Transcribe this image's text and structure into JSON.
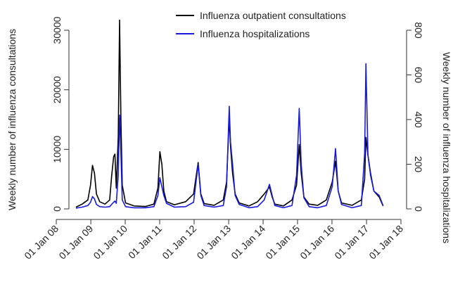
{
  "chart_data": {
    "type": "line",
    "y_label": "Weekly number of influenza consultations",
    "y2_label": "Weekly number of influenza hospitalizations",
    "legend": "top-right",
    "x": [
      "2008-07-28",
      "2008-10-01",
      "2008-12-01",
      "2008-12-29",
      "2009-01-19",
      "2009-02-09",
      "2009-03-02",
      "2009-04-06",
      "2009-06-01",
      "2009-07-20",
      "2009-08-10",
      "2009-08-31",
      "2009-09-14",
      "2009-09-28",
      "2009-10-19",
      "2009-11-02",
      "2009-11-16",
      "2009-11-30",
      "2010-01-04",
      "2010-04-05",
      "2010-08-02",
      "2010-11-01",
      "2010-12-13",
      "2011-01-03",
      "2011-01-24",
      "2011-02-14",
      "2011-03-14",
      "2011-06-06",
      "2011-10-03",
      "2011-12-26",
      "2012-02-13",
      "2012-03-12",
      "2012-04-16",
      "2012-07-30",
      "2012-11-05",
      "2012-12-10",
      "2013-01-07",
      "2013-01-21",
      "2013-02-11",
      "2013-03-11",
      "2013-04-22",
      "2013-08-05",
      "2013-11-04",
      "2014-01-13",
      "2014-03-10",
      "2014-04-07",
      "2014-05-05",
      "2014-08-04",
      "2014-11-03",
      "2014-12-22",
      "2015-01-19",
      "2015-02-09",
      "2015-03-09",
      "2015-05-04",
      "2015-08-03",
      "2015-11-02",
      "2016-01-04",
      "2016-02-08",
      "2016-03-07",
      "2016-04-11",
      "2016-08-01",
      "2016-11-07",
      "2016-12-12",
      "2016-12-26",
      "2017-01-16",
      "2017-02-13",
      "2017-03-20",
      "2017-05-15",
      "2017-06-26"
    ],
    "series": [
      {
        "name": "Influenza outpatient consultations",
        "color": "#000000",
        "axis": "y",
        "values": [
          300,
          800,
          1500,
          4000,
          7300,
          6000,
          2500,
          1200,
          800,
          1500,
          5500,
          8800,
          9200,
          3500,
          12000,
          31700,
          15000,
          4000,
          1000,
          500,
          400,
          800,
          3500,
          9600,
          7500,
          3000,
          1200,
          700,
          1200,
          2500,
          7800,
          2500,
          900,
          600,
          1500,
          4500,
          15500,
          10500,
          6000,
          2500,
          1000,
          500,
          1200,
          2500,
          3700,
          2000,
          800,
          500,
          1500,
          4000,
          10800,
          6000,
          2000,
          800,
          600,
          1500,
          4500,
          8000,
          3000,
          1000,
          600,
          1500,
          5000,
          12000,
          9000,
          6000,
          3000,
          2000,
          500
        ]
      },
      {
        "name": "Influenza hospitalizations",
        "color": "#1a1adc",
        "axis": "y2",
        "values": [
          3,
          8,
          15,
          30,
          55,
          45,
          20,
          10,
          8,
          10,
          20,
          30,
          35,
          25,
          150,
          420,
          250,
          40,
          10,
          5,
          5,
          10,
          60,
          140,
          100,
          60,
          25,
          8,
          10,
          30,
          200,
          60,
          15,
          8,
          15,
          100,
          460,
          300,
          200,
          60,
          20,
          5,
          10,
          40,
          110,
          60,
          15,
          5,
          15,
          150,
          450,
          200,
          50,
          10,
          5,
          15,
          100,
          270,
          80,
          20,
          5,
          15,
          250,
          650,
          240,
          150,
          80,
          60,
          15
        ]
      }
    ],
    "xlim": [
      "2008-01-01",
      "2018-01-01"
    ],
    "xticks": [
      {
        "value": "2008-01-01",
        "label": "01 Jan 08"
      },
      {
        "value": "2009-01-01",
        "label": "01 Jan 09"
      },
      {
        "value": "2010-01-01",
        "label": "01 Jan 10"
      },
      {
        "value": "2011-01-01",
        "label": "01 Jan 11"
      },
      {
        "value": "2012-01-01",
        "label": "01 Jan 12"
      },
      {
        "value": "2013-01-01",
        "label": "01 Jan 13"
      },
      {
        "value": "2014-01-01",
        "label": "01 Jan 14"
      },
      {
        "value": "2015-01-01",
        "label": "01 Jan 15"
      },
      {
        "value": "2016-01-01",
        "label": "01 Jan 16"
      },
      {
        "value": "2017-01-01",
        "label": "01 Jan 17"
      },
      {
        "value": "2018-01-01",
        "label": "01 Jan 18"
      }
    ],
    "ylim": [
      0,
      30000
    ],
    "yticks": [
      0,
      10000,
      20000,
      30000
    ],
    "y2lim": [
      0,
      800
    ],
    "y2ticks": [
      0,
      200,
      400,
      600,
      800
    ]
  }
}
